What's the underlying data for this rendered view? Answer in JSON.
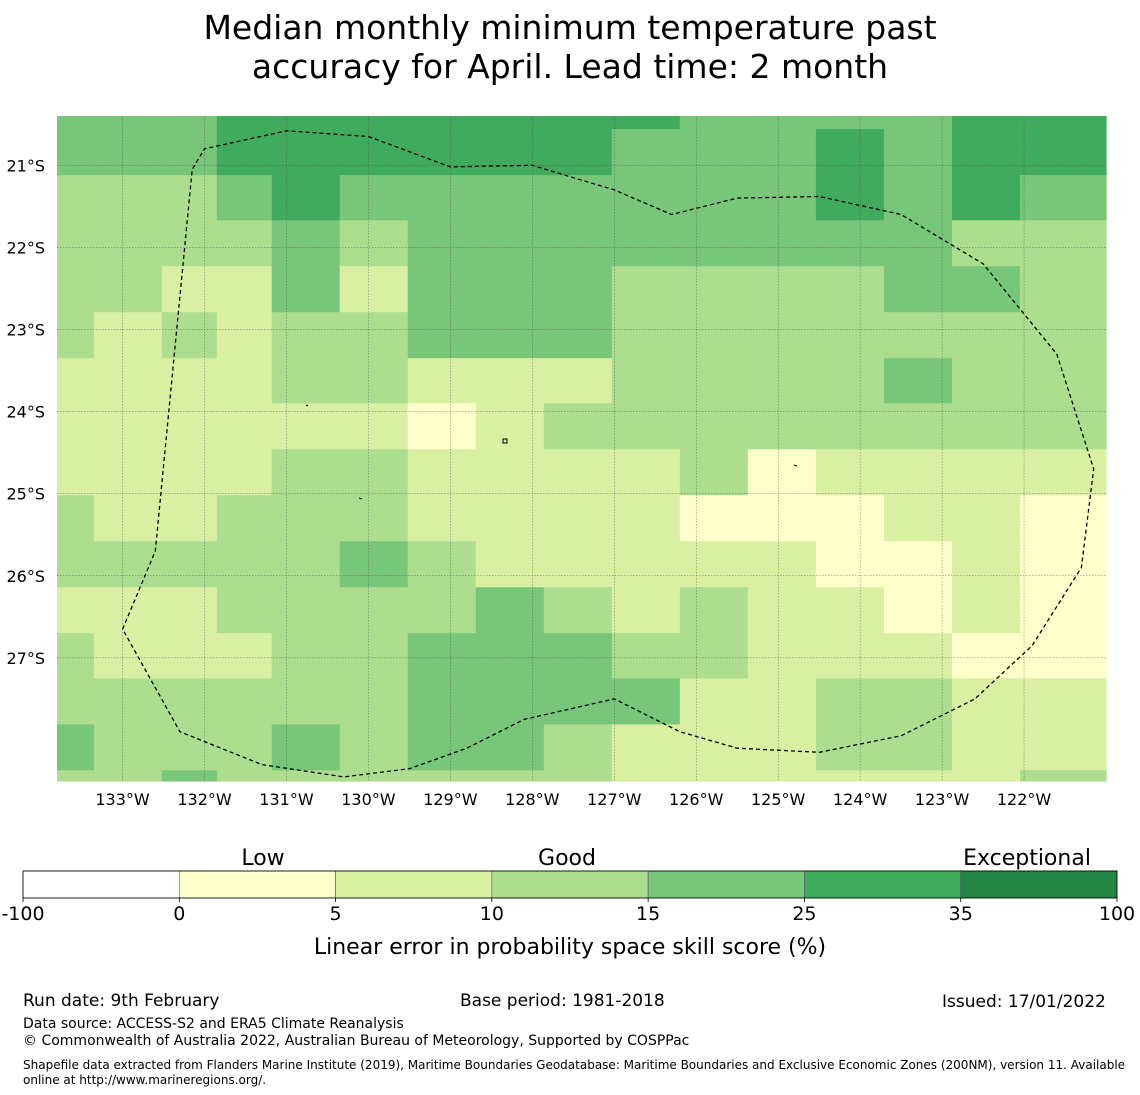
{
  "title": {
    "line1": "Median monthly minimum temperature past",
    "line2": "accuracy for April. Lead time: 2 month"
  },
  "map": {
    "lon_ticks": [
      "133°W",
      "132°W",
      "131°W",
      "130°W",
      "129°W",
      "128°W",
      "127°W",
      "126°W",
      "125°W",
      "124°W",
      "123°W",
      "122°W"
    ],
    "lat_ticks": [
      "21°S",
      "22°S",
      "23°S",
      "24°S",
      "25°S",
      "26°S",
      "27°S"
    ],
    "lon_range": [
      -133.8,
      -121.0
    ],
    "lat_range": [
      -20.4,
      -28.5
    ],
    "cell_lon_edges": [
      -133.8,
      -133.35,
      -132.52,
      -131.85,
      -131.18,
      -130.35,
      -129.52,
      -128.69,
      -127.86,
      -127.03,
      -126.2,
      -125.37,
      -124.54,
      -123.71,
      -122.88,
      -122.05,
      -121.0
    ],
    "cell_lat_edges": [
      -20.4,
      -20.56,
      -21.12,
      -21.67,
      -22.23,
      -22.79,
      -23.35,
      -23.9,
      -24.46,
      -25.02,
      -25.58,
      -26.14,
      -26.7,
      -27.25,
      -27.81,
      -28.37,
      -28.5
    ],
    "grid_classes": [
      [
        4,
        4,
        4,
        5,
        5,
        5,
        5,
        5,
        5,
        5,
        4,
        4,
        4,
        4,
        5,
        5
      ],
      [
        4,
        4,
        4,
        5,
        5,
        5,
        5,
        5,
        5,
        4,
        4,
        4,
        5,
        4,
        5,
        5
      ],
      [
        3,
        3,
        3,
        4,
        5,
        4,
        4,
        4,
        4,
        4,
        4,
        4,
        5,
        4,
        5,
        4
      ],
      [
        3,
        3,
        3,
        3,
        4,
        3,
        4,
        4,
        4,
        4,
        4,
        4,
        4,
        4,
        3,
        3
      ],
      [
        3,
        3,
        2,
        2,
        4,
        2,
        4,
        4,
        4,
        3,
        3,
        3,
        3,
        4,
        4,
        3
      ],
      [
        3,
        2,
        3,
        2,
        3,
        3,
        4,
        4,
        4,
        3,
        3,
        3,
        3,
        3,
        3,
        3
      ],
      [
        2,
        2,
        2,
        2,
        3,
        3,
        2,
        2,
        2,
        3,
        3,
        3,
        3,
        4,
        3,
        3
      ],
      [
        2,
        2,
        2,
        2,
        2,
        2,
        1,
        2,
        3,
        3,
        3,
        3,
        3,
        3,
        3,
        3
      ],
      [
        2,
        2,
        2,
        2,
        3,
        3,
        2,
        2,
        2,
        2,
        3,
        1,
        2,
        2,
        2,
        2
      ],
      [
        3,
        2,
        2,
        3,
        3,
        3,
        2,
        2,
        2,
        2,
        1,
        1,
        1,
        2,
        2,
        1
      ],
      [
        3,
        3,
        3,
        3,
        3,
        4,
        3,
        2,
        2,
        2,
        2,
        2,
        1,
        1,
        2,
        1
      ],
      [
        2,
        2,
        2,
        3,
        3,
        3,
        3,
        4,
        3,
        2,
        3,
        2,
        2,
        1,
        2,
        1
      ],
      [
        3,
        2,
        2,
        2,
        3,
        3,
        4,
        4,
        4,
        3,
        3,
        2,
        2,
        2,
        1,
        1
      ],
      [
        3,
        3,
        3,
        3,
        3,
        3,
        4,
        4,
        4,
        4,
        2,
        2,
        3,
        3,
        2,
        2
      ],
      [
        4,
        3,
        3,
        3,
        4,
        3,
        4,
        4,
        3,
        2,
        2,
        2,
        3,
        3,
        2,
        2
      ],
      [
        3,
        3,
        4,
        3,
        3,
        3,
        3,
        3,
        3,
        2,
        2,
        2,
        2,
        2,
        2,
        3
      ]
    ],
    "boundary_lonlat": [
      [
        -133.0,
        -26.65
      ],
      [
        -132.6,
        -25.7
      ],
      [
        -132.15,
        -21.05
      ],
      [
        -132.0,
        -20.8
      ],
      [
        -131.0,
        -20.58
      ],
      [
        -130.0,
        -20.65
      ],
      [
        -129.0,
        -21.02
      ],
      [
        -128.0,
        -21.0
      ],
      [
        -127.0,
        -21.3
      ],
      [
        -126.3,
        -21.6
      ],
      [
        -125.5,
        -21.4
      ],
      [
        -124.5,
        -21.38
      ],
      [
        -123.5,
        -21.6
      ],
      [
        -122.5,
        -22.2
      ],
      [
        -121.6,
        -23.3
      ],
      [
        -121.15,
        -24.7
      ],
      [
        -121.3,
        -25.9
      ],
      [
        -121.9,
        -26.85
      ],
      [
        -122.6,
        -27.5
      ],
      [
        -123.5,
        -27.95
      ],
      [
        -124.5,
        -28.15
      ],
      [
        -125.5,
        -28.1
      ],
      [
        -126.2,
        -27.9
      ],
      [
        -127.0,
        -27.5
      ],
      [
        -128.1,
        -27.75
      ],
      [
        -128.8,
        -28.1
      ],
      [
        -129.5,
        -28.35
      ],
      [
        -130.3,
        -28.45
      ],
      [
        -131.3,
        -28.3
      ],
      [
        -132.3,
        -27.9
      ],
      [
        -133.0,
        -26.65
      ]
    ]
  },
  "colorbar": {
    "header_low": "Low",
    "header_good": "Good",
    "header_exceptional": "Exceptional",
    "bins": [
      {
        "from": "-100",
        "to": "0",
        "color": "#ffffff"
      },
      {
        "from": "0",
        "to": "5",
        "color": "#ffffcc"
      },
      {
        "from": "5",
        "to": "10",
        "color": "#d9f0a3"
      },
      {
        "from": "10",
        "to": "15",
        "color": "#addd8e"
      },
      {
        "from": "15",
        "to": "25",
        "color": "#78c679"
      },
      {
        "from": "25",
        "to": "35",
        "color": "#41ab5d"
      },
      {
        "from": "35",
        "to": "100",
        "color": "#238443"
      }
    ],
    "tick_labels": [
      "-100",
      "0",
      "5",
      "10",
      "15",
      "25",
      "35",
      "100"
    ],
    "label": "Linear error in probability space skill score (%)"
  },
  "footer": {
    "run_date": "Run date: 9th February",
    "base_period": "Base period: 1981-2018",
    "issued": "Issued: 17/01/2022",
    "data_source": "Data source: ACCESS-S2 and ERA5 Climate Reanalysis",
    "copyright": "© Commonwealth of Australia 2022, Australian Bureau of Meteorology, Supported by COSPPac",
    "shapefile": "Shapefile data extracted from Flanders Marine Institute (2019), Maritime Boundaries Geodatabase: Maritime Boundaries and Exclusive Economic Zones (200NM), version 11. Available online at http://www.marineregions.org/."
  }
}
